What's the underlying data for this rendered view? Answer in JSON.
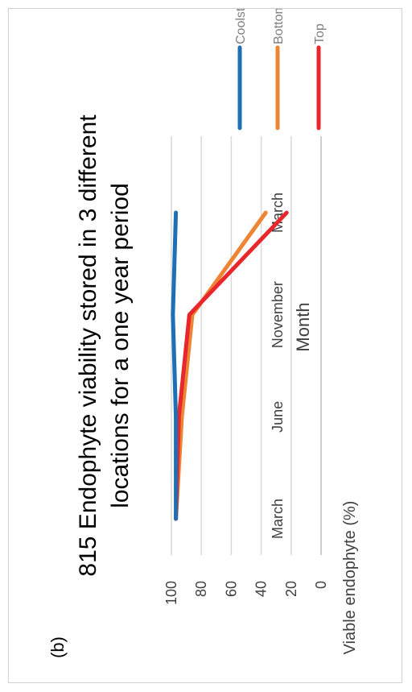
{
  "panel_label": "(b)",
  "colors": {
    "Top": "#e8262b",
    "Bottom": "#ee8535",
    "Coolstore": "#1f6fb5",
    "grid": "#d9d9d9",
    "text": "#404040"
  },
  "chart_data": {
    "type": "line",
    "title": "815 Endophyte viability stored in 3 different locations for a one year period",
    "title_lines": [
      "815 Endophyte viability stored in 3 different",
      "locations for a one year period"
    ],
    "xlabel": "Month",
    "ylabel": "Viable endophyte (%)",
    "categories": [
      "March",
      "June",
      "November",
      "March"
    ],
    "ylim": [
      0,
      100
    ],
    "yticks": [
      "0",
      "20",
      "40",
      "60",
      "80",
      "100"
    ],
    "grid": true,
    "legend_position": "right",
    "series": [
      {
        "name": "Top",
        "values": [
          97,
          95,
          88,
          23
        ]
      },
      {
        "name": "Bottom",
        "values": [
          97,
          93,
          86,
          37
        ]
      },
      {
        "name": "Coolstore",
        "values": [
          97,
          97,
          99,
          97
        ]
      }
    ]
  }
}
